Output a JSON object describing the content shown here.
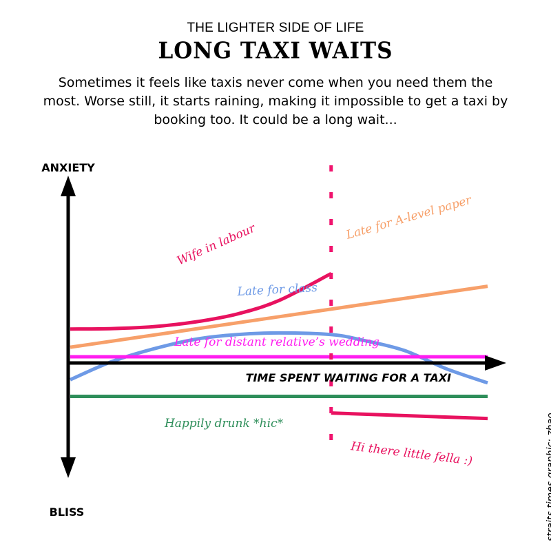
{
  "header": {
    "kicker": "THE LIGHTER SIDE OF LIFE",
    "title": "LONG TAXI WAITS",
    "subtitle": "Sometimes it feels like taxis never come when you need them the most. Worse still, it starts raining, making it impossible to get a taxi by booking too. It could be a long wait..."
  },
  "credit": "straits times graphic: zhao",
  "chart_data": {
    "type": "line",
    "title": "LONG TAXI WAITS",
    "xlabel": "TIME SPENT WAITING FOR A TAXI",
    "ylabel_top": "ANXIETY",
    "ylabel_bottom": "BLISS",
    "axis_ticks": false,
    "grid": false,
    "legend": "inline labels",
    "xlim": [
      0,
      100
    ],
    "ylim": [
      -100,
      100
    ],
    "marker": {
      "x": 62.5,
      "style": "dotted",
      "color": "#f0146e"
    },
    "series": [
      {
        "name": "Wife in labour",
        "color": "#e8125f",
        "shape": "exponential",
        "x": [
          0,
          10,
          20,
          30,
          40,
          50,
          62.5
        ],
        "y": [
          42,
          42.5,
          45,
          51,
          61,
          78,
          112
        ]
      },
      {
        "name": "Late for A-level paper",
        "color": "#f7a06a",
        "shape": "linear",
        "x": [
          0,
          100
        ],
        "y": [
          19,
          96
        ]
      },
      {
        "name": "Late for class",
        "color": "#6e9ae6",
        "shape": "parabola",
        "x": [
          0,
          10,
          20,
          30,
          40,
          50,
          62.5,
          70,
          80,
          90,
          100
        ],
        "y": [
          -22,
          1,
          17,
          29,
          35,
          37,
          35,
          28,
          15,
          -8,
          -26
        ]
      },
      {
        "name": "Late for distant relative’s wedding",
        "color": "#ff1ef0",
        "shape": "flat",
        "x": [
          0,
          100
        ],
        "y": [
          7,
          7
        ]
      },
      {
        "name": "Happily drunk *hic*",
        "color": "#2e8e5a",
        "shape": "flat",
        "x": [
          0,
          100
        ],
        "y": [
          -43,
          -43
        ]
      },
      {
        "name": "Hi there little fella :)",
        "color": "#e8125f",
        "shape": "linear",
        "x": [
          62.5,
          100
        ],
        "y": [
          -64,
          -71
        ]
      }
    ]
  }
}
